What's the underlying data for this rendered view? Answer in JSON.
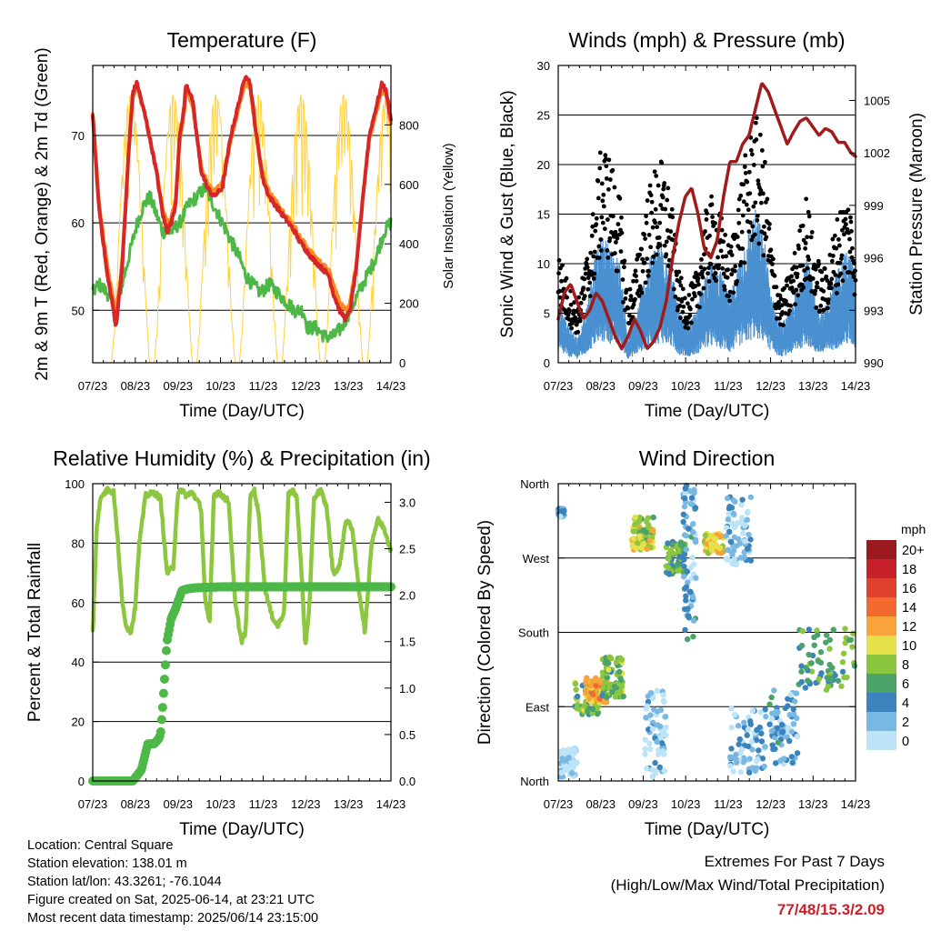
{
  "footer": {
    "location": "Location: Central Square",
    "elevation": "Station elevation: 138.01 m",
    "latlon": "Station lat/lon: 43.3261; -76.1044",
    "created": "Figure created on Sat, 2025-06-14, at 23:21 UTC",
    "recent": "Most recent data timestamp: 2025/06/14 23:15:00"
  },
  "extremes": {
    "line1": "Extremes For Past 7 Days",
    "line2": "(High/Low/Max Wind/Total Precipitation)",
    "values": "77/48/15.3/2.09",
    "value_color": "#c8202a"
  },
  "chart_data": [
    {
      "type": "line",
      "title": "Temperature (F)",
      "xlabel": "Time (Day/UTC)",
      "ylabel": "2m & 9m T (Red, Orange) & 2m Td (Green)",
      "ylabel_right": "Solar Insolation (Yellow)",
      "x_ticks": [
        "07/23",
        "08/23",
        "09/23",
        "10/23",
        "11/23",
        "12/23",
        "13/23",
        "14/23"
      ],
      "xlim": [
        7.958,
        14.958
      ],
      "ylim": [
        44,
        78
      ],
      "y_ticks": [
        50,
        60,
        70
      ],
      "ylim_right": [
        0,
        1000
      ],
      "y_ticks_right": [
        0,
        200,
        400,
        600,
        800
      ],
      "grid": "horizontal",
      "series": [
        {
          "name": "2m T",
          "color": "#d62728",
          "axis": "left",
          "x": [
            7.96,
            8.1,
            8.3,
            8.45,
            8.5,
            8.65,
            8.8,
            8.9,
            9.0,
            9.2,
            9.45,
            9.6,
            9.7,
            9.8,
            9.9,
            10.0,
            10.1,
            10.15,
            10.3,
            10.5,
            10.65,
            10.8,
            11.0,
            11.2,
            11.3,
            11.45,
            11.55,
            11.65,
            11.8,
            11.95,
            12.1,
            12.25,
            12.4,
            12.55,
            12.7,
            12.8,
            12.95,
            13.1,
            13.3,
            13.5,
            13.6,
            13.75,
            13.9,
            14.0,
            14.15,
            14.3,
            14.45,
            14.6,
            14.75,
            14.85,
            14.95
          ],
          "y": [
            72,
            62,
            54,
            50,
            48,
            55,
            68,
            75,
            76,
            72,
            66,
            61,
            59,
            60,
            62,
            70,
            73,
            76,
            74,
            66,
            64,
            63,
            64,
            70,
            72,
            75,
            77,
            76,
            70,
            65,
            63,
            62,
            61,
            60,
            59,
            58,
            57,
            56,
            55,
            54,
            52,
            50,
            49,
            50,
            55,
            63,
            70,
            73,
            76,
            75,
            72
          ]
        },
        {
          "name": "9m T",
          "color": "#ff8a1f",
          "axis": "left",
          "x": [
            7.96,
            8.1,
            8.3,
            8.45,
            8.5,
            8.65,
            8.8,
            8.9,
            9.0,
            9.2,
            9.45,
            9.6,
            9.7,
            9.8,
            9.9,
            10.0,
            10.1,
            10.15,
            10.3,
            10.5,
            10.65,
            10.8,
            11.0,
            11.2,
            11.3,
            11.45,
            11.55,
            11.65,
            11.8,
            11.95,
            12.1,
            12.25,
            12.4,
            12.55,
            12.7,
            12.8,
            12.95,
            13.1,
            13.3,
            13.5,
            13.6,
            13.75,
            13.9,
            14.0,
            14.15,
            14.3,
            14.45,
            14.6,
            14.75,
            14.85,
            14.95
          ],
          "y": [
            72.5,
            62.5,
            55,
            51,
            49,
            55.5,
            68,
            74.5,
            75.5,
            72,
            66,
            61.5,
            60,
            60.5,
            62.5,
            69.5,
            72.5,
            75,
            73.5,
            66.5,
            64.5,
            63.5,
            64.5,
            69.5,
            71.5,
            74.5,
            76,
            75.5,
            70,
            65.5,
            63.5,
            62.5,
            61.5,
            60.5,
            59.5,
            58.5,
            57.5,
            56.5,
            55.5,
            54.5,
            53,
            51,
            50,
            51,
            55.5,
            63,
            69.5,
            72.5,
            75,
            74.5,
            71.5
          ]
        },
        {
          "name": "2m Td",
          "color": "#4db848",
          "axis": "left",
          "x": [
            7.96,
            8.1,
            8.3,
            8.45,
            8.5,
            8.6,
            8.75,
            8.9,
            9.0,
            9.15,
            9.3,
            9.45,
            9.6,
            9.8,
            10.0,
            10.2,
            10.4,
            10.6,
            10.8,
            11.0,
            11.2,
            11.4,
            11.55,
            11.7,
            11.9,
            12.1,
            12.3,
            12.5,
            12.7,
            12.9,
            13.0,
            13.2,
            13.4,
            13.6,
            13.8,
            14.0,
            14.2,
            14.4,
            14.6,
            14.8,
            14.95
          ],
          "y": [
            52,
            53,
            52,
            50,
            48,
            52,
            55,
            58,
            60,
            62,
            63,
            61,
            59,
            59,
            60,
            62,
            63,
            64,
            62,
            60,
            58,
            56,
            54,
            53,
            52,
            53,
            52,
            51,
            50,
            50,
            48,
            48,
            47,
            47,
            48,
            50,
            52,
            54,
            56,
            59,
            60
          ]
        },
        {
          "name": "Solar Insolation",
          "color": "#ffd23c",
          "axis": "right",
          "daily_peak": 900
        }
      ]
    },
    {
      "type": "line",
      "title": "Winds (mph) & Pressure (mb)",
      "xlabel": "Time (Day/UTC)",
      "ylabel": "Sonic Wind & Gust (Blue, Black)",
      "ylabel_right": "Station Pressure (Maroon)",
      "x_ticks": [
        "07/23",
        "08/23",
        "09/23",
        "10/23",
        "11/23",
        "12/23",
        "13/23",
        "14/23"
      ],
      "xlim": [
        7.958,
        14.958
      ],
      "ylim": [
        0,
        30
      ],
      "y_ticks": [
        0,
        5,
        10,
        15,
        20,
        25,
        30
      ],
      "ylim_right": [
        990,
        1007
      ],
      "y_ticks_right": [
        990,
        993,
        996,
        999,
        1002,
        1005
      ],
      "grid": "horizontal",
      "series": [
        {
          "name": "Wind",
          "color": "#4a90d0",
          "axis": "left",
          "x": [
            7.96,
            8.2,
            8.4,
            8.6,
            8.8,
            9.0,
            9.2,
            9.4,
            9.6,
            9.8,
            10.0,
            10.2,
            10.4,
            10.6,
            10.8,
            11.0,
            11.2,
            11.4,
            11.6,
            11.8,
            12.0,
            12.2,
            12.4,
            12.6,
            12.8,
            13.0,
            13.2,
            13.4,
            13.6,
            13.8,
            14.0,
            14.2,
            14.4,
            14.6,
            14.8,
            14.95
          ],
          "y": [
            5,
            3,
            2,
            4,
            8,
            10,
            9,
            8,
            2,
            4,
            7,
            9,
            10,
            8,
            4,
            3,
            4,
            7,
            8,
            7,
            5,
            8,
            10,
            12,
            10,
            5,
            3,
            4,
            6,
            9,
            5,
            4,
            6,
            8,
            9,
            7
          ]
        },
        {
          "name": "Gust",
          "color": "#000000",
          "axis": "left",
          "x": [
            7.96,
            8.2,
            8.4,
            8.6,
            8.8,
            9.0,
            9.2,
            9.4,
            9.6,
            9.8,
            10.0,
            10.2,
            10.4,
            10.6,
            10.8,
            11.0,
            11.2,
            11.4,
            11.6,
            11.8,
            12.0,
            12.2,
            12.4,
            12.6,
            12.8,
            13.0,
            13.2,
            13.4,
            13.6,
            13.8,
            14.0,
            14.2,
            14.4,
            14.6,
            14.8,
            14.95
          ],
          "y": [
            10,
            7,
            5,
            9,
            14,
            20,
            18,
            15,
            6,
            9,
            14,
            17,
            18,
            15,
            8,
            6,
            8,
            13,
            15,
            13,
            10,
            15,
            19,
            22,
            19,
            10,
            6,
            8,
            11,
            15,
            10,
            8,
            11,
            14,
            15,
            12
          ]
        },
        {
          "name": "Station Pressure",
          "color": "#a01c1c",
          "axis": "right",
          "x": [
            7.96,
            8.1,
            8.25,
            8.4,
            8.55,
            8.7,
            8.85,
            9.0,
            9.15,
            9.3,
            9.45,
            9.6,
            9.75,
            9.9,
            10.05,
            10.2,
            10.35,
            10.5,
            10.65,
            10.8,
            10.95,
            11.1,
            11.25,
            11.4,
            11.55,
            11.7,
            11.85,
            12.0,
            12.15,
            12.3,
            12.45,
            12.6,
            12.75,
            12.9,
            13.05,
            13.2,
            13.35,
            13.5,
            13.65,
            13.8,
            13.95,
            14.1,
            14.25,
            14.4,
            14.55,
            14.7,
            14.85,
            14.95
          ],
          "y": [
            992.5,
            994,
            994.5,
            993.5,
            992.5,
            993,
            994,
            993.5,
            992.5,
            991.5,
            990.8,
            991.5,
            992.5,
            991.8,
            990.8,
            991.2,
            992,
            993.5,
            996,
            998,
            999.5,
            1000,
            998.5,
            996.5,
            996,
            997,
            999.5,
            1001.5,
            1001.5,
            1002.5,
            1003,
            1004.5,
            1006,
            1005.5,
            1004.5,
            1003.5,
            1002.5,
            1003.2,
            1003.8,
            1004,
            1003.5,
            1003,
            1003.4,
            1003.2,
            1002.6,
            1002.6,
            1002,
            1001.8
          ]
        }
      ]
    },
    {
      "type": "line",
      "title": "Relative Humidity (%) & Precipitation (in)",
      "xlabel": "Time (Day/UTC)",
      "ylabel": "Percent & Total Rainfall",
      "x_ticks": [
        "07/23",
        "08/23",
        "09/23",
        "10/23",
        "11/23",
        "12/23",
        "13/23",
        "14/23"
      ],
      "xlim": [
        7.958,
        14.958
      ],
      "ylim": [
        0,
        100
      ],
      "y_ticks": [
        0,
        20,
        40,
        60,
        80,
        100
      ],
      "ylim_right": [
        0,
        3.2
      ],
      "y_ticks_right": [
        "0.0",
        "0.5",
        "1.0",
        "1.5",
        "2.0",
        "2.5",
        "3.0"
      ],
      "grid": "horizontal",
      "series": [
        {
          "name": "Relative Humidity",
          "color": "#8dc63f",
          "axis": "left",
          "x": [
            7.96,
            8.05,
            8.15,
            8.3,
            8.45,
            8.55,
            8.65,
            8.75,
            8.85,
            8.95,
            9.05,
            9.2,
            9.4,
            9.55,
            9.7,
            9.85,
            9.95,
            10.05,
            10.15,
            10.3,
            10.5,
            10.6,
            10.7,
            10.8,
            10.9,
            11.0,
            11.15,
            11.3,
            11.45,
            11.55,
            11.65,
            11.75,
            11.85,
            12.0,
            12.15,
            12.3,
            12.45,
            12.55,
            12.65,
            12.75,
            12.85,
            12.95,
            13.05,
            13.15,
            13.3,
            13.45,
            13.6,
            13.75,
            13.9,
            14.05,
            14.2,
            14.35,
            14.5,
            14.65,
            14.8,
            14.95
          ],
          "y": [
            50,
            85,
            96,
            98,
            97,
            80,
            60,
            52,
            50,
            58,
            80,
            96,
            97,
            95,
            70,
            72,
            96,
            98,
            96,
            97,
            92,
            60,
            53,
            96,
            97,
            96,
            94,
            60,
            47,
            50,
            95,
            98,
            90,
            65,
            56,
            52,
            57,
            96,
            98,
            95,
            72,
            45,
            60,
            95,
            98,
            92,
            70,
            72,
            88,
            85,
            65,
            50,
            80,
            88,
            85,
            78
          ]
        },
        {
          "name": "Total Rainfall",
          "color": "#4db848",
          "axis": "right",
          "x": [
            7.96,
            8.9,
            9.1,
            9.25,
            9.4,
            9.5,
            9.55,
            9.6,
            9.7,
            9.8,
            9.9,
            9.95,
            10.0,
            10.05,
            10.2,
            10.4,
            11.0,
            12.0,
            13.0,
            14.0,
            14.95
          ],
          "y": [
            0,
            0,
            0.12,
            0.4,
            0.4,
            0.45,
            0.5,
            0.8,
            1.5,
            1.75,
            1.85,
            1.92,
            1.98,
            2.05,
            2.07,
            2.08,
            2.09,
            2.09,
            2.09,
            2.09,
            2.09
          ]
        }
      ]
    },
    {
      "type": "scatter",
      "title": "Wind Direction",
      "xlabel": "Time (Day/UTC)",
      "ylabel": "Direction (Colored By Speed)",
      "x_ticks": [
        "07/23",
        "08/23",
        "09/23",
        "10/23",
        "11/23",
        "12/23",
        "13/23",
        "14/23"
      ],
      "xlim": [
        7.958,
        14.958
      ],
      "y_categories": [
        "North",
        "East",
        "South",
        "West",
        "North"
      ],
      "ylim": [
        0,
        360
      ],
      "grid": "horizontal",
      "colorbar": {
        "label": "mph",
        "levels": [
          "20+",
          "18",
          "16",
          "14",
          "12",
          "10",
          "8",
          "6",
          "4",
          "2",
          "0"
        ],
        "colors": [
          "#9a1a1f",
          "#c8202a",
          "#e0402e",
          "#f36a2e",
          "#f9a43a",
          "#e6e04a",
          "#8cc63f",
          "#4ba36a",
          "#3a83bd",
          "#79b8e3",
          "#bde3f6"
        ]
      },
      "clusters": [
        {
          "x0": 7.96,
          "x1": 8.1,
          "dir0": 320,
          "dir1": 330,
          "speed": 4
        },
        {
          "x0": 8.0,
          "x1": 8.4,
          "dir0": 5,
          "dir1": 40,
          "speed": 1
        },
        {
          "x0": 8.35,
          "x1": 8.9,
          "dir0": 80,
          "dir1": 120,
          "speed": 8
        },
        {
          "x0": 8.6,
          "x1": 9.1,
          "dir0": 95,
          "dir1": 125,
          "speed": 13
        },
        {
          "x0": 9.0,
          "x1": 9.5,
          "dir0": 100,
          "dir1": 150,
          "speed": 8
        },
        {
          "x0": 9.7,
          "x1": 10.2,
          "dir0": 280,
          "dir1": 320,
          "speed": 10
        },
        {
          "x0": 10.0,
          "x1": 10.5,
          "dir0": 5,
          "dir1": 110,
          "speed": 2
        },
        {
          "x0": 10.5,
          "x1": 10.95,
          "dir0": 250,
          "dir1": 290,
          "speed": 7
        },
        {
          "x0": 10.9,
          "x1": 11.2,
          "dir0": 170,
          "dir1": 360,
          "speed": 4
        },
        {
          "x0": 11.4,
          "x1": 11.85,
          "dir0": 275,
          "dir1": 300,
          "speed": 11
        },
        {
          "x0": 11.9,
          "x1": 12.5,
          "dir0": 260,
          "dir1": 345,
          "speed": 3
        },
        {
          "x0": 12.0,
          "x1": 12.9,
          "dir0": 10,
          "dir1": 90,
          "speed": 3
        },
        {
          "x0": 12.9,
          "x1": 13.6,
          "dir0": 20,
          "dir1": 110,
          "speed": 4
        },
        {
          "x0": 13.6,
          "x1": 14.95,
          "dir0": 110,
          "dir1": 185,
          "speed": 7
        }
      ]
    }
  ]
}
